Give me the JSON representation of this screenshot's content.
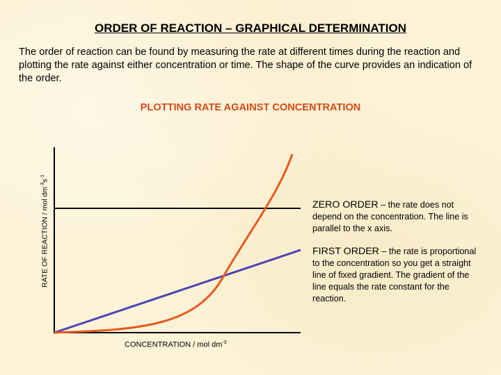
{
  "slide": {
    "title": "ORDER OF REACTION – GRAPHICAL DETERMINATION",
    "intro": "The order of reaction can be found by measuring the rate at different times during the reaction and plotting the rate against either concentration or time.  The shape of the curve provides an indication of the order.",
    "subtitle": "PLOTTING RATE AGAINST CONCENTRATION"
  },
  "axes": {
    "ylabel_main": "RATE OF REACTION / mol dm",
    "ylabel_sup1": "-3",
    "ylabel_mid": "s",
    "ylabel_sup2": "-1",
    "xlabel_main": "CONCENTRATION / mol dm",
    "xlabel_sup": "-3"
  },
  "notes": {
    "zero_head": "ZERO ORDER",
    "zero_rest": " – the rate does not depend on the concentration. The line is parallel to the x axis.",
    "first_head": "FIRST ORDER",
    "first_rest": " – the rate is proportional to the concentration so you get a straight line of fixed gradient. The gradient of the line equals the rate constant for the reaction."
  },
  "colors": {
    "zero_order": "#000000",
    "first_order": "#4b43b8",
    "second_order": "#e8581c",
    "subtitle": "#d94a14"
  }
}
